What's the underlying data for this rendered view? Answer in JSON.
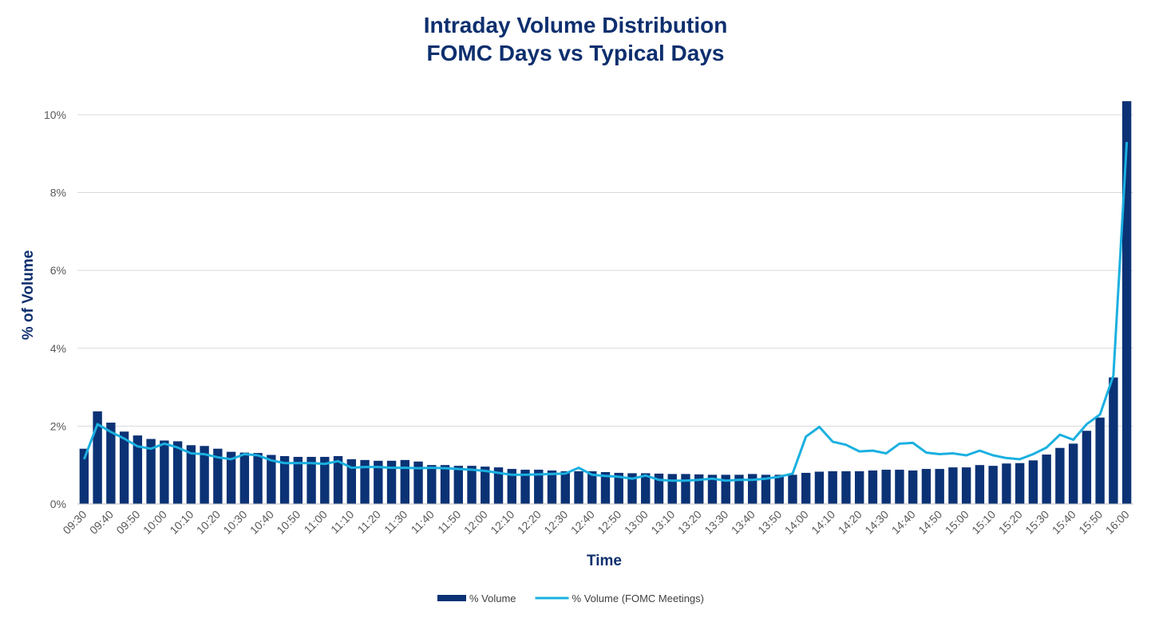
{
  "chart_data": {
    "type": "bar_line",
    "title": "Intraday Volume Distribution",
    "subtitle": "FOMC Days vs Typical Days",
    "x_label": "Time",
    "y_label": "% of Volume",
    "categories": [
      "09:30",
      null,
      "09:40",
      null,
      "09:50",
      null,
      "10:00",
      null,
      "10:10",
      null,
      "10:20",
      null,
      "10:30",
      null,
      "10:40",
      null,
      "10:50",
      null,
      "11:00",
      null,
      "11:10",
      null,
      "11:20",
      null,
      "11:30",
      null,
      "11:40",
      null,
      "11:50",
      null,
      "12:00",
      null,
      "12:10",
      null,
      "12:20",
      null,
      "12:30",
      null,
      "12:40",
      null,
      "12:50",
      null,
      "13:00",
      null,
      "13:10",
      null,
      "13:20",
      null,
      "13:30",
      null,
      "13:40",
      null,
      "13:50",
      null,
      "14:00",
      null,
      "14:10",
      null,
      "14:20",
      null,
      "14:30",
      null,
      "14:40",
      null,
      "14:50",
      null,
      "15:00",
      null,
      "15:10",
      null,
      "15:20",
      null,
      "15:30",
      null,
      "15:40",
      null,
      "15:50",
      null,
      "16:00"
    ],
    "series": [
      {
        "name": "% Volume",
        "kind": "bar",
        "color": "#0b3275",
        "values": [
          1.42,
          2.38,
          2.09,
          1.86,
          1.76,
          1.67,
          1.63,
          1.61,
          1.51,
          1.49,
          1.42,
          1.34,
          1.32,
          1.31,
          1.26,
          1.23,
          1.21,
          1.21,
          1.21,
          1.23,
          1.15,
          1.13,
          1.11,
          1.11,
          1.13,
          1.09,
          1.0,
          1.0,
          0.98,
          0.98,
          0.96,
          0.94,
          0.9,
          0.88,
          0.88,
          0.86,
          0.84,
          0.84,
          0.84,
          0.82,
          0.8,
          0.79,
          0.79,
          0.78,
          0.77,
          0.77,
          0.76,
          0.75,
          0.75,
          0.75,
          0.77,
          0.75,
          0.75,
          0.75,
          0.8,
          0.83,
          0.84,
          0.84,
          0.84,
          0.86,
          0.88,
          0.88,
          0.86,
          0.9,
          0.9,
          0.94,
          0.94,
          1.0,
          0.98,
          1.04,
          1.05,
          1.12,
          1.27,
          1.44,
          1.55,
          1.88,
          2.22,
          3.25,
          10.35
        ]
      },
      {
        "name": "% Volume (FOMC Meetings)",
        "kind": "line",
        "color": "#1ab0e0",
        "values": [
          1.15,
          2.05,
          1.85,
          1.68,
          1.48,
          1.42,
          1.55,
          1.45,
          1.3,
          1.28,
          1.2,
          1.15,
          1.28,
          1.25,
          1.12,
          1.05,
          1.05,
          1.05,
          1.03,
          1.1,
          0.93,
          0.95,
          0.95,
          0.93,
          0.93,
          0.92,
          0.93,
          0.92,
          0.9,
          0.88,
          0.85,
          0.8,
          0.75,
          0.75,
          0.76,
          0.77,
          0.78,
          0.93,
          0.75,
          0.72,
          0.7,
          0.65,
          0.73,
          0.62,
          0.6,
          0.6,
          0.62,
          0.65,
          0.6,
          0.62,
          0.62,
          0.65,
          0.7,
          0.78,
          1.73,
          1.98,
          1.6,
          1.52,
          1.35,
          1.37,
          1.3,
          1.55,
          1.57,
          1.32,
          1.28,
          1.3,
          1.25,
          1.37,
          1.25,
          1.18,
          1.15,
          1.28,
          1.45,
          1.78,
          1.65,
          2.05,
          2.3,
          3.3,
          9.3
        ]
      }
    ],
    "ylim": [
      0,
      10.9
    ],
    "yticks": [
      {
        "value": 0,
        "label": "0%"
      },
      {
        "value": 2,
        "label": "2%"
      },
      {
        "value": 4,
        "label": "4%"
      },
      {
        "value": 6,
        "label": "6%"
      },
      {
        "value": 8,
        "label": "8%"
      },
      {
        "value": 10,
        "label": "10%"
      }
    ],
    "grid": true,
    "legend": "bottom"
  }
}
